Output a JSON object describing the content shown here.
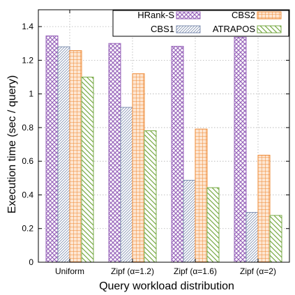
{
  "chart_data": {
    "type": "bar",
    "xlabel": "Query workload distribution",
    "ylabel": "Execution time (sec / query)",
    "categories": [
      "Uniform",
      "Zipf (α=1.2)",
      "Zipf (α=1.6)",
      "Zipf (α=2)"
    ],
    "ylim": [
      0,
      1.5
    ],
    "yticks": [
      0,
      0.2,
      0.4,
      0.6,
      0.8,
      1,
      1.2,
      1.4
    ],
    "ytick_labels": [
      "0",
      "0.2",
      "0.4",
      "0.6",
      "0.8",
      "1",
      "1.2",
      "1.4"
    ],
    "grid": true,
    "legend_position": "top-right",
    "series": [
      {
        "name": "HRank-S",
        "values": [
          1.345,
          1.3,
          1.283,
          1.337
        ],
        "color": "#9966bb",
        "pattern": "crosshatch"
      },
      {
        "name": "CBS1",
        "values": [
          1.28,
          0.92,
          0.487,
          0.296
        ],
        "color": "#7f8fb0",
        "pattern": "fine-diagonal"
      },
      {
        "name": "CBS2",
        "values": [
          1.257,
          1.12,
          0.791,
          0.636
        ],
        "color": "#ee8833",
        "pattern": "grid"
      },
      {
        "name": "ATRAPOS",
        "values": [
          1.1,
          0.781,
          0.443,
          0.278
        ],
        "color": "#77aa44",
        "pattern": "diagonal"
      }
    ]
  }
}
